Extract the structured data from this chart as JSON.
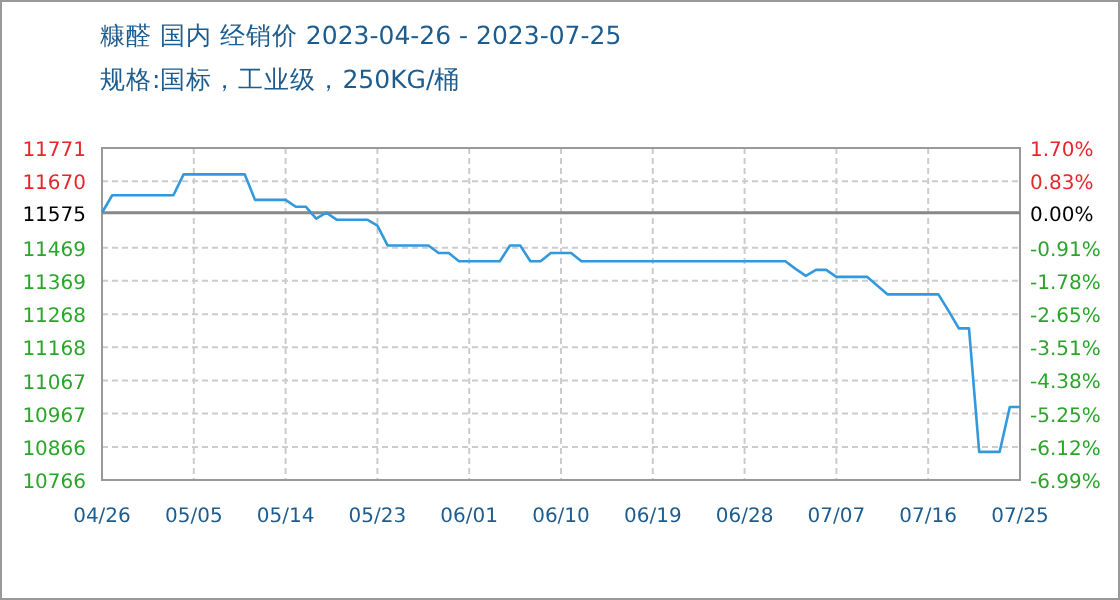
{
  "chart_data": {
    "type": "line",
    "title": "糠醛 国内 经销价 2023-04-26 - 2023-07-25",
    "subtitle": "规格:国标，工业级，250KG/桶",
    "x": [
      "2023-04-26",
      "2023-04-27",
      "2023-05-03",
      "2023-05-04",
      "2023-05-10",
      "2023-05-11",
      "2023-05-14",
      "2023-05-15",
      "2023-05-16",
      "2023-05-17",
      "2023-05-18",
      "2023-05-19",
      "2023-05-22",
      "2023-05-23",
      "2023-05-24",
      "2023-05-28",
      "2023-05-29",
      "2023-05-30",
      "2023-05-31",
      "2023-06-04",
      "2023-06-05",
      "2023-06-06",
      "2023-06-07",
      "2023-06-08",
      "2023-06-09",
      "2023-06-11",
      "2023-06-12",
      "2023-07-02",
      "2023-07-03",
      "2023-07-04",
      "2023-07-05",
      "2023-07-06",
      "2023-07-07",
      "2023-07-10",
      "2023-07-12",
      "2023-07-17",
      "2023-07-18",
      "2023-07-19",
      "2023-07-20",
      "2023-07-21",
      "2023-07-23",
      "2023-07-24",
      "2023-07-25"
    ],
    "series": [
      {
        "color": "#3399dd",
        "values": [
          11575,
          11628,
          11628,
          11691,
          11691,
          11614,
          11614,
          11593,
          11593,
          11557,
          11575,
          11554,
          11554,
          11536,
          11476,
          11476,
          11453,
          11453,
          11428,
          11428,
          11476,
          11476,
          11428,
          11428,
          11453,
          11453,
          11428,
          11428,
          11405,
          11384,
          11402,
          11402,
          11381,
          11381,
          11328,
          11328,
          11278,
          11225,
          11225,
          10851,
          10851,
          10987,
          10987
        ]
      }
    ],
    "xlim": [
      "2023-04-26",
      "2023-07-25"
    ],
    "xticks": [
      {
        "value": "2023-04-26",
        "label": "04/26"
      },
      {
        "value": "2023-05-05",
        "label": "05/05"
      },
      {
        "value": "2023-05-14",
        "label": "05/14"
      },
      {
        "value": "2023-05-23",
        "label": "05/23"
      },
      {
        "value": "2023-06-01",
        "label": "06/01"
      },
      {
        "value": "2023-06-10",
        "label": "06/10"
      },
      {
        "value": "2023-06-19",
        "label": "06/19"
      },
      {
        "value": "2023-06-28",
        "label": "06/28"
      },
      {
        "value": "2023-07-07",
        "label": "07/07"
      },
      {
        "value": "2023-07-16",
        "label": "07/16"
      },
      {
        "value": "2023-07-25",
        "label": "07/25"
      }
    ],
    "ylim": [
      10766,
      11771
    ],
    "yticks": [
      10766,
      10866,
      10967,
      11067,
      11168,
      11268,
      11369,
      11469,
      11575,
      11670,
      11771
    ],
    "y2lim": [
      -6.99,
      1.7
    ],
    "y2ticks": [
      {
        "value": -6.99,
        "label": "-6.99%"
      },
      {
        "value": -6.12,
        "label": "-6.12%"
      },
      {
        "value": -5.25,
        "label": "-5.25%"
      },
      {
        "value": -4.38,
        "label": "-4.38%"
      },
      {
        "value": -3.51,
        "label": "-3.51%"
      },
      {
        "value": -2.65,
        "label": "-2.65%"
      },
      {
        "value": -1.78,
        "label": "-1.78%"
      },
      {
        "value": -0.91,
        "label": "-0.91%"
      },
      {
        "value": 0,
        "label": "0.00%"
      },
      {
        "value": 0.83,
        "label": "0.83%"
      },
      {
        "value": 1.7,
        "label": "1.70%"
      }
    ],
    "ref_lines": [
      {
        "axis": "y",
        "value": 11575,
        "color": "#888888"
      }
    ],
    "grid": true,
    "line_style": "solid",
    "marker": "none"
  }
}
